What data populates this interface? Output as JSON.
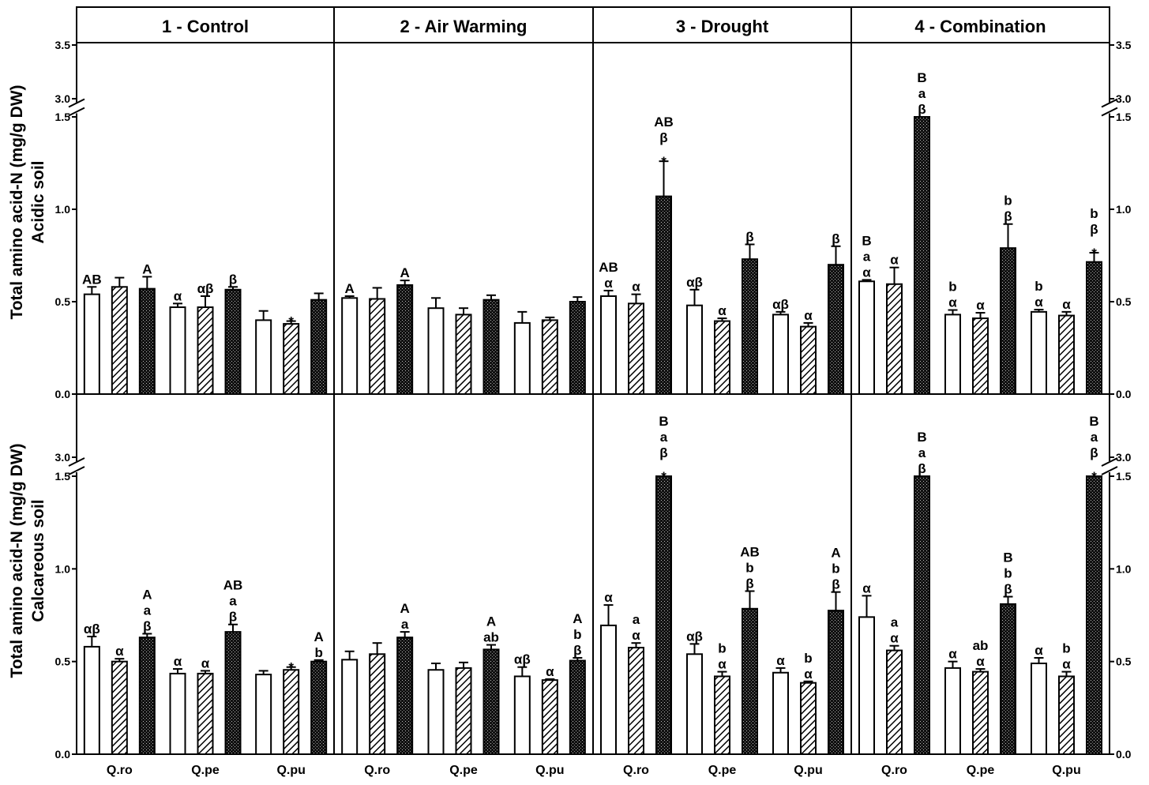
{
  "chart_data": {
    "type": "bar",
    "treatments": [
      "1 - Control",
      "2 - Air Warming",
      "3 - Drought",
      "4 - Combination"
    ],
    "categories": [
      "Q.ro",
      "Q.pe",
      "Q.pu"
    ],
    "y_ticks_lower": [
      "0.0",
      "0.5",
      "1.0",
      "1.5"
    ],
    "y_ticks_upper_acidic": [
      "3.0",
      "3.5"
    ],
    "y_ticks_upper_calcareous": [
      "3.0"
    ],
    "ylim_lower": [
      0,
      1.5
    ],
    "ylim_upper": [
      3.0,
      3.5
    ],
    "axis_break": true,
    "rows": [
      {
        "ylabel_line1": "Total amino acid-N (mg/g DW)",
        "ylabel_line2": "Acidic soil",
        "panels": [
          {
            "series": [
              {
                "values": [
                  0.54,
                  0.47,
                  0.4
                ],
                "errors": [
                  0.04,
                  0.02,
                  0.05
                ],
                "annotations": [
                  [
                    "AB"
                  ],
                  [
                    "α"
                  ],
                  []
                ]
              },
              {
                "values": [
                  0.58,
                  0.47,
                  0.38
                ],
                "errors": [
                  0.05,
                  0.06,
                  0.015
                ],
                "annotations": [
                  [],
                  [
                    "αβ"
                  ],
                  [
                    "*"
                  ]
                ]
              },
              {
                "values": [
                  0.57,
                  0.565,
                  0.51
                ],
                "errors": [
                  0.065,
                  0.015,
                  0.035
                ],
                "annotations": [
                  [
                    "A"
                  ],
                  [
                    "β"
                  ],
                  []
                ]
              }
            ]
          },
          {
            "series": [
              {
                "values": [
                  0.52,
                  0.465,
                  0.385
                ],
                "errors": [
                  0.01,
                  0.055,
                  0.06
                ],
                "annotations": [
                  [
                    "A"
                  ],
                  [],
                  []
                ]
              },
              {
                "values": [
                  0.515,
                  0.43,
                  0.4
                ],
                "errors": [
                  0.06,
                  0.035,
                  0.015
                ],
                "annotations": [
                  [],
                  [],
                  []
                ]
              },
              {
                "values": [
                  0.59,
                  0.51,
                  0.5
                ],
                "errors": [
                  0.025,
                  0.025,
                  0.025
                ],
                "annotations": [
                  [
                    "A"
                  ],
                  [],
                  []
                ]
              }
            ]
          },
          {
            "series": [
              {
                "values": [
                  0.53,
                  0.48,
                  0.43
                ],
                "errors": [
                  0.03,
                  0.085,
                  0.015
                ],
                "annotations": [
                  [
                    "AB",
                    "α"
                  ],
                  [
                    "αβ"
                  ],
                  [
                    "αβ"
                  ]
                ]
              },
              {
                "values": [
                  0.49,
                  0.395,
                  0.365
                ],
                "errors": [
                  0.05,
                  0.015,
                  0.02
                ],
                "annotations": [
                  [
                    "α"
                  ],
                  [
                    "α"
                  ],
                  [
                    "α"
                  ]
                ]
              },
              {
                "values": [
                  1.07,
                  0.73,
                  0.7
                ],
                "errors": [
                  0.19,
                  0.08,
                  0.1
                ],
                "annotations": [
                  [
                    "AB",
                    "β",
                    "*"
                  ],
                  [
                    "β"
                  ],
                  [
                    "β"
                  ]
                ]
              }
            ]
          },
          {
            "series": [
              {
                "values": [
                  0.61,
                  0.43,
                  0.445
                ],
                "errors": [
                  0.008,
                  0.025,
                  0.012
                ],
                "annotations": [
                  [
                    "B",
                    "a",
                    "α"
                  ],
                  [
                    "b",
                    "α"
                  ],
                  [
                    "b",
                    "α"
                  ]
                ]
              },
              {
                "values": [
                  0.595,
                  0.41,
                  0.425
                ],
                "errors": [
                  0.09,
                  0.03,
                  0.02
                ],
                "annotations": [
                  [
                    "α"
                  ],
                  [
                    "α"
                  ],
                  [
                    "α"
                  ]
                ]
              },
              {
                "values": [
                  1.5,
                  0.79,
                  0.715
                ],
                "errors": [
                  0,
                  0.13,
                  0.05
                ],
                "annotations": [
                  [
                    "B",
                    "a",
                    "β"
                  ],
                  [
                    "b",
                    "β"
                  ],
                  [
                    "b",
                    "β",
                    "*"
                  ]
                ]
              }
            ]
          }
        ]
      },
      {
        "ylabel_line1": "Total amino acid-N (mg/g DW)",
        "ylabel_line2": "Calcareous soil",
        "panels": [
          {
            "series": [
              {
                "values": [
                  0.58,
                  0.435,
                  0.43
                ],
                "errors": [
                  0.055,
                  0.025,
                  0.02
                ],
                "annotations": [
                  [
                    "αβ"
                  ],
                  [
                    "α"
                  ],
                  []
                ]
              },
              {
                "values": [
                  0.5,
                  0.435,
                  0.455
                ],
                "errors": [
                  0.015,
                  0.015,
                  0.015
                ],
                "annotations": [
                  [
                    "α"
                  ],
                  [
                    "α"
                  ],
                  [
                    "*"
                  ]
                ]
              },
              {
                "values": [
                  0.63,
                  0.66,
                  0.5
                ],
                "errors": [
                  0.02,
                  0.04,
                  0.008
                ],
                "annotations": [
                  [
                    "A",
                    "a",
                    "β"
                  ],
                  [
                    "AB",
                    "a",
                    "β"
                  ],
                  [
                    "A",
                    "b"
                  ]
                ]
              }
            ]
          },
          {
            "series": [
              {
                "values": [
                  0.51,
                  0.455,
                  0.42
                ],
                "errors": [
                  0.045,
                  0.035,
                  0.05
                ],
                "annotations": [
                  [],
                  [],
                  [
                    "αβ"
                  ]
                ]
              },
              {
                "values": [
                  0.54,
                  0.465,
                  0.4
                ],
                "errors": [
                  0.06,
                  0.03,
                  0.005
                ],
                "annotations": [
                  [],
                  [],
                  [
                    "α"
                  ]
                ]
              },
              {
                "values": [
                  0.63,
                  0.565,
                  0.505
                ],
                "errors": [
                  0.03,
                  0.025,
                  0.015
                ],
                "annotations": [
                  [
                    "A",
                    "a"
                  ],
                  [
                    "A",
                    "ab"
                  ],
                  [
                    "A",
                    "b",
                    "β"
                  ]
                ]
              }
            ]
          },
          {
            "series": [
              {
                "values": [
                  0.695,
                  0.54,
                  0.44
                ],
                "errors": [
                  0.11,
                  0.055,
                  0.025
                ],
                "annotations": [
                  [
                    "α"
                  ],
                  [
                    "αβ"
                  ],
                  [
                    "α"
                  ]
                ]
              },
              {
                "values": [
                  0.575,
                  0.42,
                  0.385
                ],
                "errors": [
                  0.025,
                  0.025,
                  0.008
                ],
                "annotations": [
                  [
                    "a",
                    "α"
                  ],
                  [
                    "b",
                    "α"
                  ],
                  [
                    "b",
                    "α"
                  ]
                ]
              },
              {
                "values": [
                  1.5,
                  0.785,
                  0.775
                ],
                "errors": [
                  0,
                  0.095,
                  0.1
                ],
                "annotations": [
                  [
                    "B",
                    "a",
                    "β",
                    "*"
                  ],
                  [
                    "AB",
                    "b",
                    "β"
                  ],
                  [
                    "A",
                    "b",
                    "β"
                  ]
                ]
              }
            ]
          },
          {
            "series": [
              {
                "values": [
                  0.74,
                  0.465,
                  0.49
                ],
                "errors": [
                  0.115,
                  0.035,
                  0.03
                ],
                "annotations": [
                  [
                    "α"
                  ],
                  [
                    "α"
                  ],
                  [
                    "α"
                  ]
                ]
              },
              {
                "values": [
                  0.56,
                  0.445,
                  0.42
                ],
                "errors": [
                  0.025,
                  0.015,
                  0.025
                ],
                "annotations": [
                  [
                    "a",
                    "α"
                  ],
                  [
                    "ab",
                    "α"
                  ],
                  [
                    "b",
                    "α"
                  ]
                ]
              },
              {
                "values": [
                  1.5,
                  0.81,
                  1.5
                ],
                "errors": [
                  0,
                  0.04,
                  0
                ],
                "annotations": [
                  [
                    "B",
                    "a",
                    "β"
                  ],
                  [
                    "B",
                    "b",
                    "β"
                  ],
                  [
                    "B",
                    "a",
                    "β",
                    "*"
                  ]
                ]
              }
            ]
          }
        ]
      }
    ]
  }
}
